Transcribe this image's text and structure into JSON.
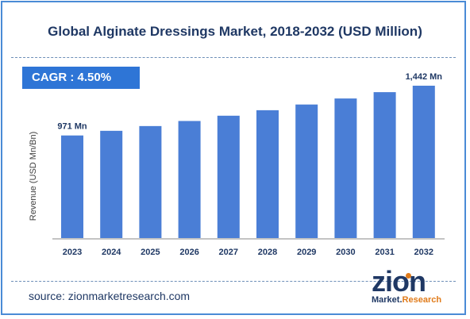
{
  "title": "Global Alginate Dressings Market, 2018-2032 (USD Million)",
  "cagr": {
    "label": "CAGR :",
    "value": "4.50%"
  },
  "source": "source: zionmarketresearch.com",
  "logo": {
    "word": "zion",
    "line_a": "Market.",
    "line_b": "Research"
  },
  "colors": {
    "bar": "#4a7ed6",
    "title": "#1f3864",
    "badge": "#2e75d6",
    "frame": "#4a8bd6"
  },
  "chart_data": {
    "type": "bar",
    "title": "Global Alginate Dressings Market, 2018-2032 (USD Million)",
    "xlabel": "",
    "ylabel": "Revenue (USD Mn/Bn)",
    "categories": [
      "2023",
      "2024",
      "2025",
      "2026",
      "2027",
      "2028",
      "2029",
      "2030",
      "2031",
      "2032"
    ],
    "values": [
      971,
      1015,
      1060,
      1108,
      1158,
      1210,
      1264,
      1321,
      1381,
      1442
    ],
    "data_labels": [
      {
        "index": 0,
        "text": "971 Mn"
      },
      {
        "index": 9,
        "text": "1,442 Mn"
      }
    ],
    "ylim": [
      0,
      1500
    ],
    "grid": false,
    "legend": "none"
  }
}
